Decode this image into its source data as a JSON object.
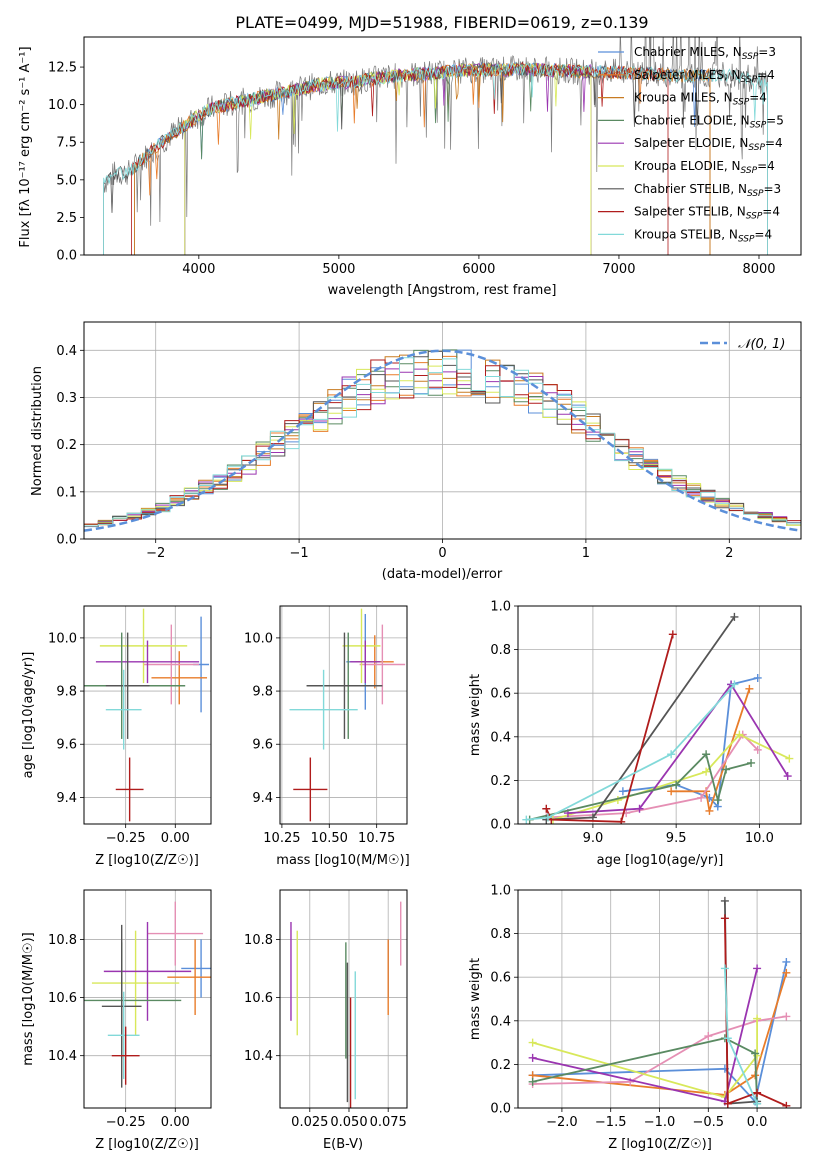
{
  "figure_title": "PLATE=0499, MJD=51988, FIBERID=0619, z=0.139",
  "colors": {
    "chabrier_miles": "#5b8fd9",
    "salpeter_miles": "#e87c2a",
    "kroupa_miles": "#c87b22",
    "chabrier_elodie": "#5a8a62",
    "salpeter_elodie": "#9a35b0",
    "kroupa_elodie": "#d8e85a",
    "chabrier_stelib": "#555555",
    "salpeter_stelib": "#b01c1c",
    "kroupa_stelib": "#82d9d9",
    "pink": "#e58fb4",
    "normal_curve": "#5b8fd9"
  },
  "chart_data": [
    {
      "id": "spectrum",
      "type": "line",
      "title": "PLATE=0499, MJD=51988, FIBERID=0619, z=0.139",
      "xlabel": "wavelength [Angstrom, rest frame]",
      "ylabel": "Flux [fλ 10⁻¹⁷ erg cm⁻² s⁻¹ A⁻¹]",
      "xlim": [
        3180,
        8300
      ],
      "ylim": [
        0,
        14.5
      ],
      "xticks": [
        4000,
        5000,
        6000,
        7000,
        8000
      ],
      "yticks": [
        0.0,
        2.5,
        5.0,
        7.5,
        10.0,
        12.5
      ],
      "legend_position": "top-right",
      "legend": [
        "Chabrier MILES, N_SSP=3",
        "Salpeter MILES, N_SSP=4",
        "Kroupa MILES, N_SSP=4",
        "Chabrier ELODIE, N_SSP=5",
        "Salpeter ELODIE, N_SSP=4",
        "Kroupa ELODIE, N_SSP=4",
        "Chabrier STELIB, N_SSP=3",
        "Salpeter STELIB, N_SSP=4",
        "Kroupa STELIB, N_SSP=4"
      ],
      "continuum": {
        "x": [
          3320,
          3400,
          3500,
          3600,
          3700,
          3800,
          3900,
          4000,
          4100,
          4200,
          4300,
          4500,
          4700,
          4900,
          5100,
          5300,
          5500,
          5700,
          5900,
          6100,
          6300,
          6500,
          6700,
          6900,
          7100,
          7300,
          7500,
          7700,
          7900,
          8060
        ],
        "y": [
          4.8,
          5.4,
          5.5,
          6.4,
          7.2,
          8.0,
          8.6,
          9.3,
          9.8,
          10.0,
          10.2,
          10.6,
          11.0,
          11.4,
          11.5,
          11.8,
          12.0,
          12.1,
          12.3,
          12.3,
          12.4,
          12.3,
          12.2,
          12.2,
          12.1,
          12.0,
          11.9,
          12.0,
          11.8,
          11.5
        ]
      },
      "series": [
        {
          "name": "Chabrier MILES, N_SSP=3",
          "color": "#5b8fd9",
          "x": [
            3540,
            7650
          ],
          "y": [
            5.2,
            12.0
          ]
        },
        {
          "name": "Salpeter MILES, N_SSP=4",
          "color": "#e87c2a",
          "x": [
            3540,
            7650
          ],
          "y": [
            5.2,
            12.0
          ]
        },
        {
          "name": "Kroupa MILES, N_SSP=4",
          "color": "#c87b22",
          "x": [
            3540,
            7650
          ],
          "y": [
            5.2,
            12.0
          ]
        },
        {
          "name": "Chabrier ELODIE, N_SSP=5",
          "color": "#5a8a62",
          "x": [
            3900,
            6800
          ],
          "y": [
            9.0,
            12.3
          ]
        },
        {
          "name": "Salpeter ELODIE, N_SSP=4",
          "color": "#9a35b0",
          "x": [
            3900,
            6800
          ],
          "y": [
            9.0,
            12.3
          ]
        },
        {
          "name": "Kroupa ELODIE, N_SSP=4",
          "color": "#d8e85a",
          "x": [
            3900,
            6800
          ],
          "y": [
            9.0,
            12.3
          ]
        },
        {
          "name": "Chabrier STELIB, N_SSP=3",
          "color": "#555555",
          "x": [
            3320,
            8060
          ],
          "y": [
            4.8,
            11.5
          ]
        },
        {
          "name": "Salpeter STELIB, N_SSP=4",
          "color": "#b01c1c",
          "x": [
            3520,
            7350
          ],
          "y": [
            5.2,
            12.0
          ]
        },
        {
          "name": "Kroupa STELIB, N_SSP=4",
          "color": "#82d9d9",
          "x": [
            3320,
            8060
          ],
          "y": [
            4.8,
            11.5
          ]
        }
      ]
    },
    {
      "id": "residuals",
      "type": "line",
      "xlabel": "(data-model)/error",
      "ylabel": "Normed distribution",
      "xlim": [
        -2.5,
        2.5
      ],
      "ylim": [
        0,
        0.46
      ],
      "xticks": [
        -2,
        -1,
        0,
        1,
        2
      ],
      "yticks": [
        0.0,
        0.1,
        0.2,
        0.3,
        0.4
      ],
      "grid": true,
      "legend_position": "top-right",
      "legend": [
        "𝒩(0, 1)"
      ],
      "bin_width": 0.1,
      "profile": {
        "x": [
          -2.5,
          -2.0,
          -1.5,
          -1.0,
          -0.5,
          0.0,
          0.5,
          1.0,
          1.5,
          2.0,
          2.5
        ],
        "y": [
          0.025,
          0.06,
          0.13,
          0.23,
          0.33,
          0.36,
          0.33,
          0.25,
          0.14,
          0.07,
          0.03
        ]
      },
      "normal_curve": {
        "mean": 0,
        "sigma": 1
      }
    },
    {
      "id": "age_vs_Z",
      "type": "scatter",
      "xlabel": "Z [log10(Z/Z☉)]",
      "ylabel": "age  [log10(age/yr)]",
      "xlim": [
        -0.46,
        0.18
      ],
      "ylim": [
        9.3,
        10.12
      ],
      "xticks": [
        -0.25,
        0.0
      ],
      "yticks": [
        9.4,
        9.6,
        9.8,
        10.0
      ],
      "grid": true,
      "points": [
        {
          "x": 0.13,
          "y": 9.9,
          "xerr": 0.04,
          "yerr": 0.18,
          "color": "#5b8fd9"
        },
        {
          "x": 0.02,
          "y": 9.85,
          "xerr": 0.14,
          "yerr": 0.1,
          "color": "#e87c2a"
        },
        {
          "x": -0.02,
          "y": 9.9,
          "xerr": 0.14,
          "yerr": 0.15,
          "color": "#e58fb4"
        },
        {
          "x": -0.16,
          "y": 9.97,
          "xerr": 0.22,
          "yerr": 0.14,
          "color": "#d8e85a"
        },
        {
          "x": -0.14,
          "y": 9.91,
          "xerr": 0.26,
          "yerr": 0.08,
          "color": "#9a35b0"
        },
        {
          "x": -0.27,
          "y": 9.82,
          "xerr": 0.32,
          "yerr": 0.2,
          "color": "#5a8a62"
        },
        {
          "x": -0.24,
          "y": 9.82,
          "xerr": 0.11,
          "yerr": 0.2,
          "color": "#555555"
        },
        {
          "x": -0.26,
          "y": 9.73,
          "xerr": 0.09,
          "yerr": 0.15,
          "color": "#82d9d9"
        },
        {
          "x": -0.23,
          "y": 9.43,
          "xerr": 0.07,
          "yerr": 0.12,
          "color": "#b01c1c"
        }
      ]
    },
    {
      "id": "age_vs_mass",
      "type": "scatter",
      "xlabel": "mass [log10(M/M☉)]",
      "ylabel": "",
      "xlim": [
        10.24,
        10.91
      ],
      "ylim": [
        9.3,
        10.12
      ],
      "xticks": [
        10.25,
        10.5,
        10.75
      ],
      "yticks": [
        9.4,
        9.6,
        9.8,
        10.0
      ],
      "grid": true,
      "points": [
        {
          "x": 10.69,
          "y": 9.91,
          "xerr": 0.1,
          "yerr": 0.18,
          "color": "#5b8fd9"
        },
        {
          "x": 10.74,
          "y": 9.91,
          "xerr": 0.1,
          "yerr": 0.1,
          "color": "#e87c2a"
        },
        {
          "x": 10.78,
          "y": 9.9,
          "xerr": 0.12,
          "yerr": 0.15,
          "color": "#e58fb4"
        },
        {
          "x": 10.67,
          "y": 9.97,
          "xerr": 0.1,
          "yerr": 0.14,
          "color": "#d8e85a"
        },
        {
          "x": 10.69,
          "y": 9.91,
          "xerr": 0.08,
          "yerr": 0.08,
          "color": "#9a35b0"
        },
        {
          "x": 10.6,
          "y": 9.82,
          "xerr": 0.1,
          "yerr": 0.2,
          "color": "#5a8a62"
        },
        {
          "x": 10.58,
          "y": 9.82,
          "xerr": 0.2,
          "yerr": 0.2,
          "color": "#555555"
        },
        {
          "x": 10.47,
          "y": 9.73,
          "xerr": 0.18,
          "yerr": 0.15,
          "color": "#82d9d9"
        },
        {
          "x": 10.4,
          "y": 9.43,
          "xerr": 0.09,
          "yerr": 0.12,
          "color": "#b01c1c"
        }
      ]
    },
    {
      "id": "weight_vs_age",
      "type": "line",
      "xlabel": "age  [log10(age/yr)]",
      "ylabel": "mass weight",
      "xlim": [
        8.55,
        10.25
      ],
      "ylim": [
        0.0,
        1.0
      ],
      "xticks": [
        9.0,
        9.5,
        10.0
      ],
      "yticks": [
        0.0,
        0.2,
        0.4,
        0.6,
        0.8,
        1.0
      ],
      "grid": true,
      "series": [
        {
          "color": "#5b8fd9",
          "x": [
            9.18,
            9.5,
            9.7,
            9.75,
            9.83,
            9.99
          ],
          "y": [
            0.15,
            0.18,
            0.12,
            0.08,
            0.64,
            0.67
          ]
        },
        {
          "color": "#e87c2a",
          "x": [
            9.47,
            9.68,
            9.7,
            9.94
          ],
          "y": [
            0.15,
            0.15,
            0.06,
            0.62
          ]
        },
        {
          "color": "#e58fb4",
          "x": [
            8.72,
            9.2,
            9.65,
            9.9,
            9.99
          ],
          "y": [
            0.03,
            0.05,
            0.12,
            0.41,
            0.34
          ]
        },
        {
          "color": "#d8e85a",
          "x": [
            8.76,
            9.15,
            9.68,
            9.88,
            10.18
          ],
          "y": [
            0.02,
            0.11,
            0.24,
            0.41,
            0.3
          ]
        },
        {
          "color": "#9a35b0",
          "x": [
            8.85,
            9.28,
            9.83,
            10.17
          ],
          "y": [
            0.05,
            0.07,
            0.64,
            0.22
          ]
        },
        {
          "color": "#5a8a62",
          "x": [
            8.62,
            9.5,
            9.68,
            9.75,
            9.8,
            9.95
          ],
          "y": [
            0.02,
            0.18,
            0.32,
            0.11,
            0.25,
            0.28
          ]
        },
        {
          "color": "#555555",
          "x": [
            8.72,
            9.0,
            9.85
          ],
          "y": [
            0.02,
            0.03,
            0.95
          ]
        },
        {
          "color": "#b01c1c",
          "x": [
            8.72,
            8.75,
            9.17,
            9.48
          ],
          "y": [
            0.07,
            0.02,
            0.01,
            0.87
          ]
        },
        {
          "color": "#82d9d9",
          "x": [
            8.6,
            8.73,
            9.47,
            9.85
          ],
          "y": [
            0.02,
            0.03,
            0.32,
            0.64
          ]
        }
      ]
    },
    {
      "id": "mass_vs_Z",
      "type": "scatter",
      "xlabel": "Z [log10(Z/Z☉)]",
      "ylabel": "mass [log10(M/M☉)]",
      "xlim": [
        -0.46,
        0.18
      ],
      "ylim": [
        10.22,
        10.97
      ],
      "xticks": [
        -0.25,
        0.0
      ],
      "yticks": [
        10.4,
        10.6,
        10.8
      ],
      "grid": true,
      "points": [
        {
          "x": 0.13,
          "y": 10.7,
          "xerr": 0.1,
          "yerr": 0.1,
          "color": "#5b8fd9"
        },
        {
          "x": 0.1,
          "y": 10.67,
          "xerr": 0.14,
          "yerr": 0.13,
          "color": "#e87c2a"
        },
        {
          "x": 0.0,
          "y": 10.82,
          "xerr": 0.14,
          "yerr": 0.11,
          "color": "#e58fb4"
        },
        {
          "x": -0.2,
          "y": 10.65,
          "xerr": 0.22,
          "yerr": 0.18,
          "color": "#d8e85a"
        },
        {
          "x": -0.14,
          "y": 10.69,
          "xerr": 0.22,
          "yerr": 0.17,
          "color": "#9a35b0"
        },
        {
          "x": -0.27,
          "y": 10.59,
          "xerr": 0.3,
          "yerr": 0.2,
          "color": "#5a8a62"
        },
        {
          "x": -0.27,
          "y": 10.57,
          "xerr": 0.1,
          "yerr": 0.28,
          "color": "#555555"
        },
        {
          "x": -0.26,
          "y": 10.47,
          "xerr": 0.08,
          "yerr": 0.15,
          "color": "#82d9d9"
        },
        {
          "x": -0.25,
          "y": 10.4,
          "xerr": 0.07,
          "yerr": 0.1,
          "color": "#b01c1c"
        }
      ]
    },
    {
      "id": "mass_vs_ebv",
      "type": "scatter",
      "xlabel": "E(B-V)",
      "ylabel": "",
      "xlim": [
        0.006,
        0.087
      ],
      "ylim": [
        10.22,
        10.97
      ],
      "xticks": [
        0.025,
        0.05,
        0.075
      ],
      "yticks": [
        10.4,
        10.6,
        10.8
      ],
      "grid": true,
      "points": [
        {
          "x": 0.075,
          "y": 10.7,
          "yerr": 0.1,
          "color": "#5b8fd9"
        },
        {
          "x": 0.075,
          "y": 10.67,
          "yerr": 0.13,
          "color": "#e87c2a"
        },
        {
          "x": 0.083,
          "y": 10.82,
          "yerr": 0.11,
          "color": "#e58fb4"
        },
        {
          "x": 0.017,
          "y": 10.65,
          "yerr": 0.18,
          "color": "#d8e85a"
        },
        {
          "x": 0.013,
          "y": 10.69,
          "yerr": 0.17,
          "color": "#9a35b0"
        },
        {
          "x": 0.048,
          "y": 10.59,
          "yerr": 0.2,
          "color": "#5a8a62"
        },
        {
          "x": 0.049,
          "y": 10.48,
          "yerr": 0.24,
          "color": "#555555"
        },
        {
          "x": 0.054,
          "y": 10.47,
          "yerr": 0.22,
          "color": "#82d9d9"
        },
        {
          "x": 0.051,
          "y": 10.4,
          "yerr": 0.2,
          "color": "#b01c1c"
        }
      ]
    },
    {
      "id": "weight_vs_Z",
      "type": "line",
      "xlabel": "Z [log10(Z/Z☉)]",
      "ylabel": "mass weight",
      "xlim": [
        -2.45,
        0.45
      ],
      "ylim": [
        0.0,
        1.0
      ],
      "xticks": [
        -2.0,
        -1.5,
        -1.0,
        -0.5,
        0.0
      ],
      "yticks": [
        0.0,
        0.2,
        0.4,
        0.6,
        0.8,
        1.0
      ],
      "grid": true,
      "series": [
        {
          "color": "#5b8fd9",
          "x": [
            -2.3,
            -0.33,
            -0.02,
            0.3
          ],
          "y": [
            0.15,
            0.18,
            0.03,
            0.67
          ]
        },
        {
          "color": "#e87c2a",
          "x": [
            -2.3,
            -0.33,
            -0.02,
            0.3
          ],
          "y": [
            0.15,
            0.06,
            0.15,
            0.62
          ]
        },
        {
          "color": "#e58fb4",
          "x": [
            -2.3,
            -1.3,
            -0.5,
            0.0,
            0.3
          ],
          "y": [
            0.11,
            0.12,
            0.33,
            0.4,
            0.42
          ]
        },
        {
          "color": "#d8e85a",
          "x": [
            -2.3,
            -0.33,
            0.0,
            0.0
          ],
          "y": [
            0.3,
            0.05,
            0.24,
            0.41
          ]
        },
        {
          "color": "#9a35b0",
          "x": [
            -2.3,
            -0.33,
            0.0
          ],
          "y": [
            0.23,
            0.03,
            0.64
          ]
        },
        {
          "color": "#5a8a62",
          "x": [
            -2.3,
            -0.33,
            -0.02,
            0.0
          ],
          "y": [
            0.12,
            0.32,
            0.25,
            0.02
          ]
        },
        {
          "color": "#555555",
          "x": [
            -0.33,
            -0.3,
            0.0
          ],
          "y": [
            0.95,
            0.02,
            0.03
          ]
        },
        {
          "color": "#b01c1c",
          "x": [
            -0.33,
            -0.3,
            0.0,
            0.3
          ],
          "y": [
            0.87,
            0.02,
            0.07,
            0.01
          ]
        },
        {
          "color": "#82d9d9",
          "x": [
            -0.33,
            -0.3,
            0.0
          ],
          "y": [
            0.64,
            0.32,
            0.02
          ]
        }
      ]
    }
  ]
}
